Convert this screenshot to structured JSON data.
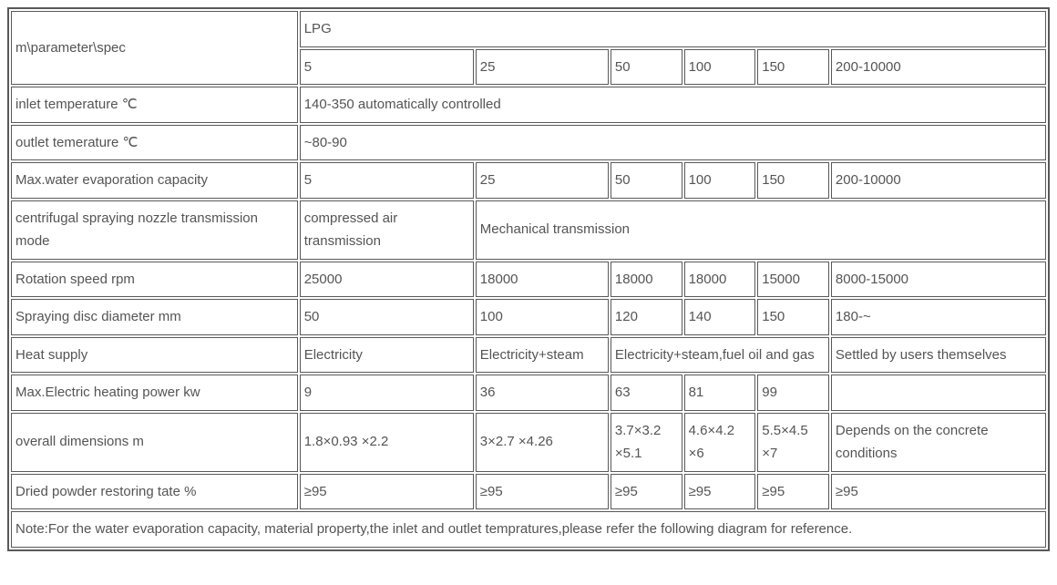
{
  "header": {
    "param_label": "m\\parameter\\spec",
    "lpg_label": "LPG",
    "cols": [
      "5",
      "25",
      "50",
      "100",
      "150",
      "200-10000"
    ]
  },
  "rows": {
    "inlet_temp": {
      "label": "inlet temperature ℃",
      "value": "140-350 automatically controlled"
    },
    "outlet_temp": {
      "label": "outlet temerature ℃",
      "value": "~80-90"
    },
    "max_evap": {
      "label": "Max.water evaporation capacity",
      "values": [
        "5",
        "25",
        "50",
        "100",
        "150",
        "200-10000"
      ]
    },
    "nozzle_mode": {
      "label": "centrifugal spraying nozzle transmission mode",
      "compressed": "compressed air transmission",
      "mechanical": "Mechanical transmission"
    },
    "rotation_speed": {
      "label": "Rotation speed rpm",
      "values": [
        "25000",
        "18000",
        "18000",
        "18000",
        "15000",
        "8000-15000"
      ]
    },
    "disc_diameter": {
      "label": "Spraying disc diameter mm",
      "values": [
        "50",
        "100",
        "120",
        "140",
        "150",
        "180-~"
      ]
    },
    "heat_supply": {
      "label": "Heat supply",
      "electricity": "Electricity",
      "elec_steam": "Electricity+steam",
      "elec_steam_fuel": "Electricity+steam,fuel oil and gas",
      "settled": "Settled by users themselves"
    },
    "max_electric": {
      "label": "Max.Electric heating power kw",
      "values": [
        "9",
        "36",
        "63",
        "81",
        "99",
        ""
      ]
    },
    "overall_dim": {
      "label": "overall dimensions m",
      "values": [
        "1.8×0.93 ×2.2",
        "3×2.7 ×4.26",
        "3.7×3.2 ×5.1",
        "4.6×4.2 ×6",
        "5.5×4.5 ×7",
        "Depends on the concrete conditions"
      ]
    },
    "dried_powder": {
      "label": "Dried powder restoring tate %",
      "values": [
        "≥95",
        "≥95",
        "≥95",
        "≥95",
        "≥95",
        "≥95"
      ]
    },
    "note": "Note:For the water evaporation capacity, material property,the inlet and outlet tempratures,please refer the following diagram for reference."
  },
  "widths": {
    "col0": "28%",
    "col1": "17%",
    "col2": "13%",
    "col3": "7%",
    "col4": "7%",
    "col5": "7%",
    "col6": "21%"
  }
}
